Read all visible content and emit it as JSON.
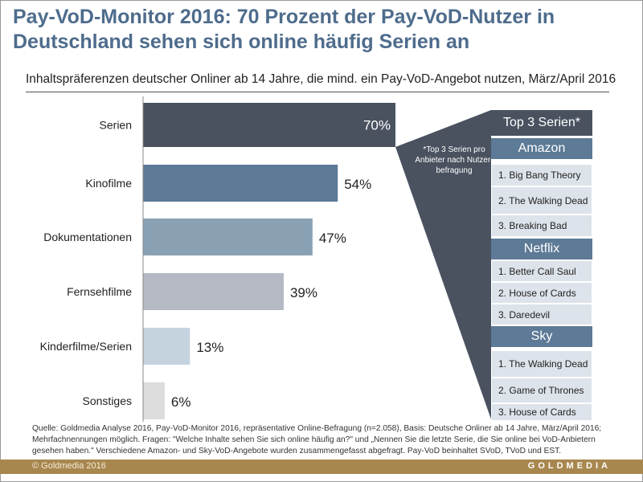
{
  "title": "Pay-VoD-Monitor 2016: 70 Prozent der Pay-VoD-Nutzer in Deutschland sehen sich online häufig Serien an",
  "subtitle": "Inhaltspräferenzen deutscher Onliner ab 14 Jahre, die mind. ein Pay-VoD-Angebot nutzen, März/April 2016",
  "chart_data": {
    "type": "bar",
    "orientation": "horizontal",
    "categories": [
      "Serien",
      "Kinofilme",
      "Dokumentationen",
      "Fernsehfilme",
      "Kinderfilme/Serien",
      "Sonstiges"
    ],
    "values": [
      70,
      54,
      47,
      39,
      13,
      6
    ],
    "labels": [
      "70%",
      "54%",
      "47%",
      "39%",
      "13%",
      "6%"
    ],
    "colors": [
      "#4a5260",
      "#5d7a96",
      "#8aa1b4",
      "#b4b9c3",
      "#c5d3df",
      "#dcdcdc"
    ],
    "xlim": [
      0,
      100
    ]
  },
  "panel": {
    "title": "Top 3 Serien*",
    "note": "*Top 3 Serien pro Anbieter nach Nutzer-befragung",
    "providers": [
      {
        "name": "Amazon",
        "items": [
          "1. Big Bang Theory",
          "2. The Walking Dead",
          "3. Breaking Bad"
        ]
      },
      {
        "name": "Netflix",
        "items": [
          "1. Better Call Saul",
          "2. House of Cards",
          "3. Daredevil"
        ]
      },
      {
        "name": "Sky",
        "items": [
          "1. The Walking Dead",
          "2. Game of Thrones",
          "3. House of Cards"
        ]
      }
    ]
  },
  "source": "Quelle: Goldmedia Analyse 2016, Pay-VoD-Monitor 2016, repräsentative Online-Befragung (n=2.058), Basis: Deutsche Onliner ab 14 Jahre, März/April 2016; Mehrfachnennungen möglich. Fragen: \"Welche Inhalte sehen Sie sich online häufig an?\" und „Nennen Sie die letzte Serie, die Sie online bei VoD-Anbietern gesehen haben.\" Verschiedene Amazon- und Sky-VoD-Angebote wurden zusammengefasst abgefragt. Pay-VoD beinhaltet SVoD, TVoD und EST.",
  "footer": {
    "copyright": "© Goldmedia 2016",
    "brand": "GOLDMEDIA"
  }
}
